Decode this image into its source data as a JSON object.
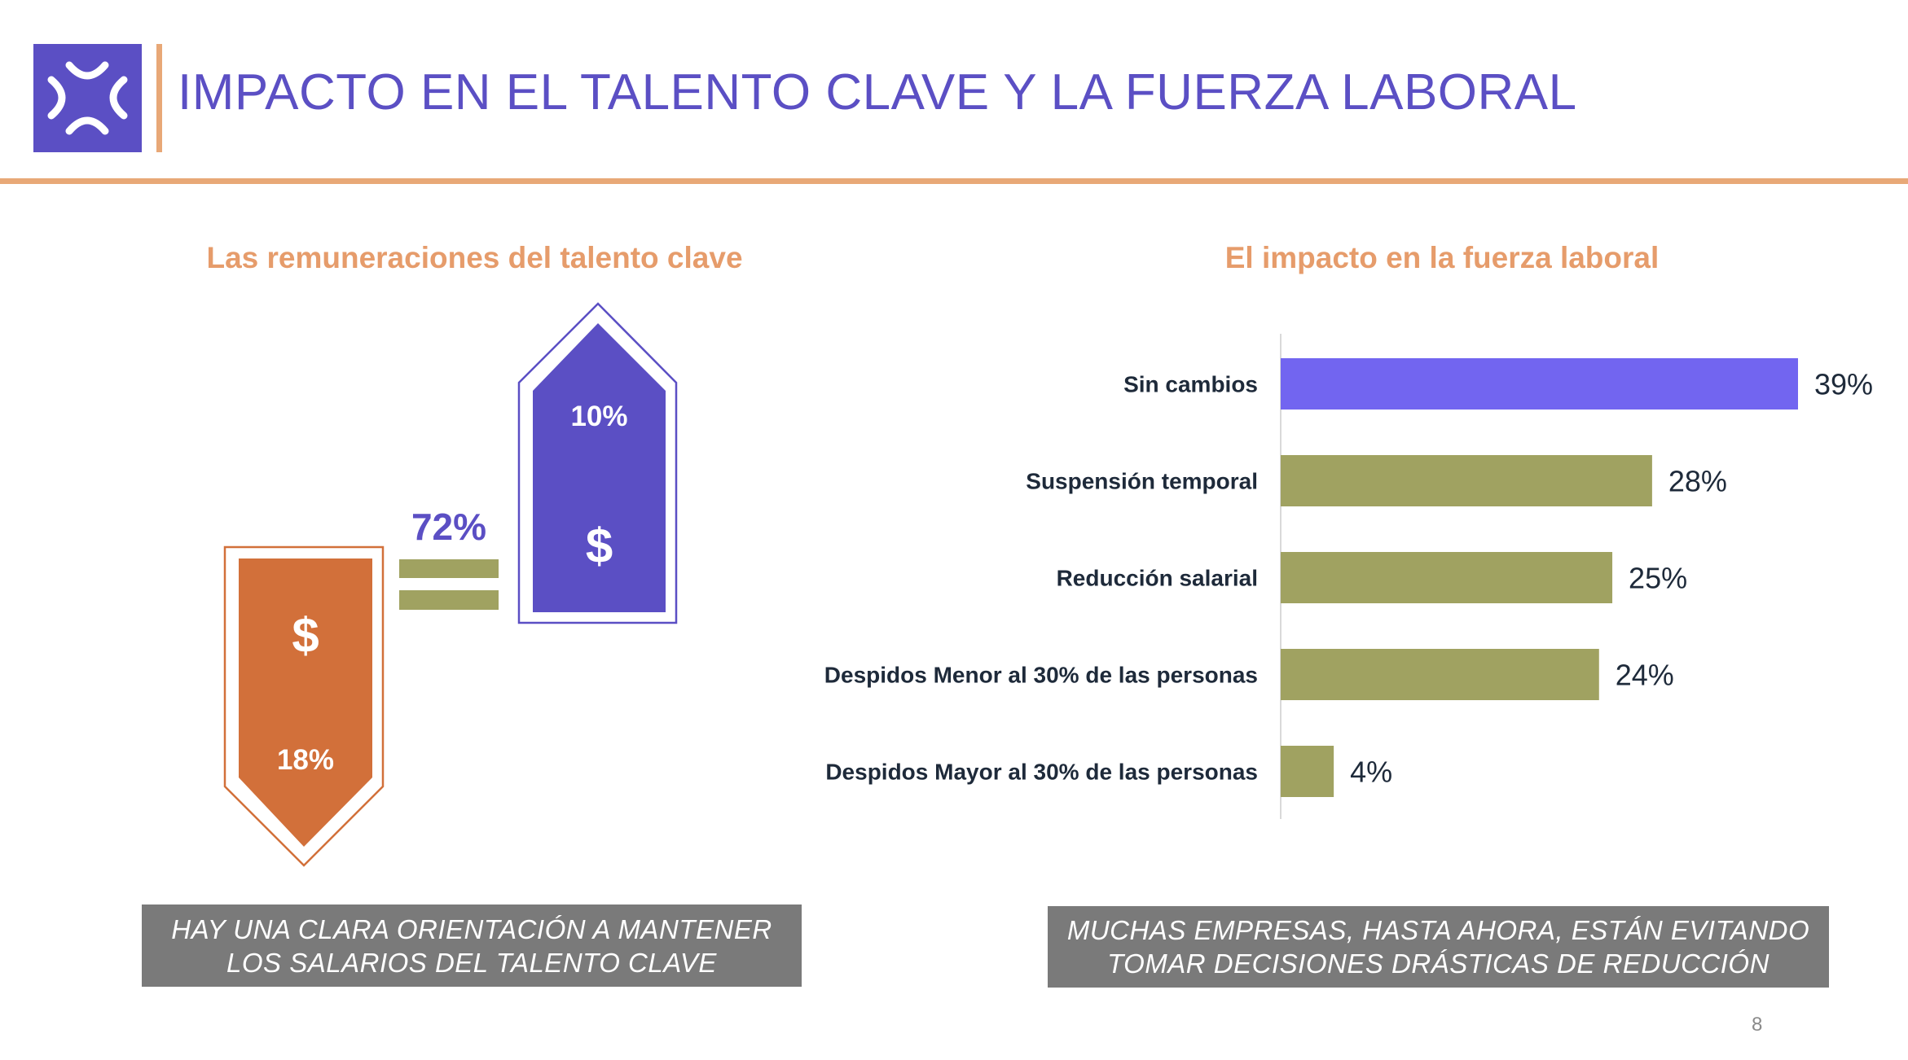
{
  "header": {
    "title": "IMPACTO EN EL TALENTO CLAVE Y LA FUERZA LABORAL",
    "logo_icon": "expand-arrows-icon",
    "brand_color": "#5b4fc4",
    "accent_color": "#e8a877"
  },
  "left_panel": {
    "subtitle": "Las remuneraciones del talento clave",
    "decrease": {
      "pct": "18%",
      "symbol": "$",
      "color": "#d2703a"
    },
    "same": {
      "pct": "72%",
      "color": "#a0a261"
    },
    "increase": {
      "pct": "10%",
      "symbol": "$",
      "color": "#5b4fc4"
    },
    "callout_line1": "HAY UNA CLARA ORIENTACIÓN A MANTENER",
    "callout_line2": "LOS SALARIOS DEL TALENTO CLAVE"
  },
  "right_panel": {
    "subtitle": "El impacto en la fuerza laboral",
    "callout_line1": "MUCHAS EMPRESAS, HASTA AHORA, ESTÁN EVITANDO",
    "callout_line2": "TOMAR DECISIONES DRÁSTICAS DE REDUCCIÓN"
  },
  "chart_data": {
    "type": "bar",
    "orientation": "horizontal",
    "categories": [
      "Sin cambios",
      "Suspensión temporal",
      "Reducción salarial",
      "Despidos Menor al 30% de las personas",
      "Despidos Mayor al 30% de las personas"
    ],
    "values": [
      39,
      28,
      25,
      24,
      4
    ],
    "value_labels": [
      "39%",
      "28%",
      "25%",
      "24%",
      "4%"
    ],
    "colors": [
      "#7265f0",
      "#a0a261",
      "#a0a261",
      "#a0a261",
      "#a0a261"
    ],
    "title": "El impacto en la fuerza laboral",
    "xlabel": "",
    "ylabel": "",
    "grid": false,
    "legend": "none"
  },
  "footer": {
    "page_number": "8"
  }
}
